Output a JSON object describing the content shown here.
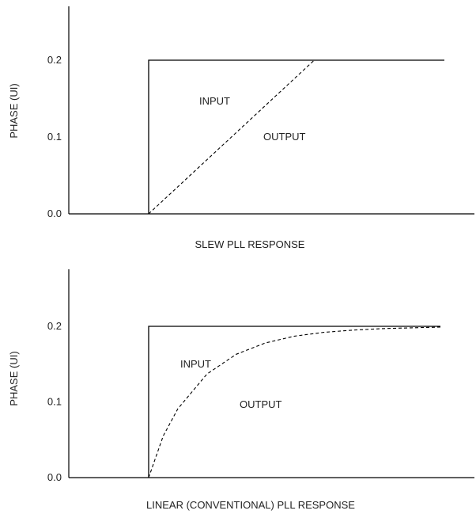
{
  "chart_data": [
    {
      "type": "line",
      "title": "SLEW PLL RESPONSE",
      "ylabel": "PHASE (UI)",
      "xlabel": "",
      "ylim": [
        0.0,
        0.27
      ],
      "yticks": [
        "0.0",
        "0.1",
        "0.2"
      ],
      "grid": false,
      "annotations": [
        {
          "text": "INPUT",
          "series": "input"
        },
        {
          "text": "OUTPUT",
          "series": "output"
        }
      ],
      "series": [
        {
          "key": "input",
          "style": "solid",
          "x": [
            0.0,
            0.0,
            1.0
          ],
          "y": [
            0.0,
            0.2,
            0.2
          ]
        },
        {
          "key": "output",
          "style": "dashed",
          "x": [
            0.0,
            0.56
          ],
          "y": [
            0.0,
            0.2
          ]
        }
      ]
    },
    {
      "type": "line",
      "title": "LINEAR (CONVENTIONAL) PLL RESPONSE",
      "ylabel": "PHASE (UI)",
      "xlabel": "",
      "ylim": [
        0.0,
        0.27
      ],
      "yticks": [
        "0.0",
        "0.1",
        "0.2"
      ],
      "grid": false,
      "annotations": [
        {
          "text": "INPUT",
          "series": "input"
        },
        {
          "text": "OUTPUT",
          "series": "output"
        }
      ],
      "series": [
        {
          "key": "input",
          "style": "solid",
          "x": [
            0.0,
            0.0,
            1.0
          ],
          "y": [
            0.0,
            0.2,
            0.2
          ]
        },
        {
          "key": "output",
          "style": "dashed",
          "x": [
            0.0,
            0.05,
            0.1,
            0.2,
            0.3,
            0.4,
            0.5,
            0.6,
            0.7,
            0.8,
            0.9,
            1.0
          ],
          "y": [
            0.0,
            0.055,
            0.091,
            0.137,
            0.163,
            0.178,
            0.187,
            0.192,
            0.195,
            0.197,
            0.198,
            0.199
          ]
        }
      ]
    }
  ]
}
